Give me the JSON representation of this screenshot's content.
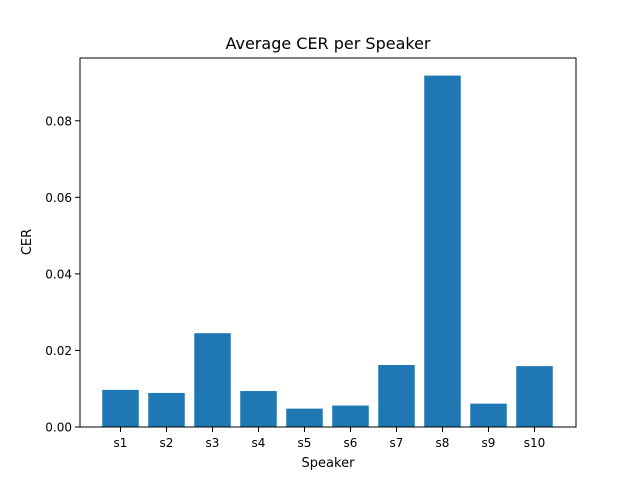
{
  "chart_data": {
    "type": "bar",
    "title": "Average CER per Speaker",
    "xlabel": "Speaker",
    "ylabel": "CER",
    "categories": [
      "s1",
      "s2",
      "s3",
      "s4",
      "s5",
      "s6",
      "s7",
      "s8",
      "s9",
      "s10"
    ],
    "values": [
      0.0097,
      0.0089,
      0.0245,
      0.0094,
      0.0048,
      0.0056,
      0.0162,
      0.0918,
      0.0061,
      0.0159
    ],
    "yticks": [
      0.0,
      0.02,
      0.04,
      0.06,
      0.08
    ],
    "ytick_labels": [
      "0.00",
      "0.02",
      "0.04",
      "0.06",
      "0.08"
    ],
    "ylim": [
      0,
      0.0964
    ],
    "bar_color": "#1f77b4",
    "grid": false,
    "legend": false
  }
}
